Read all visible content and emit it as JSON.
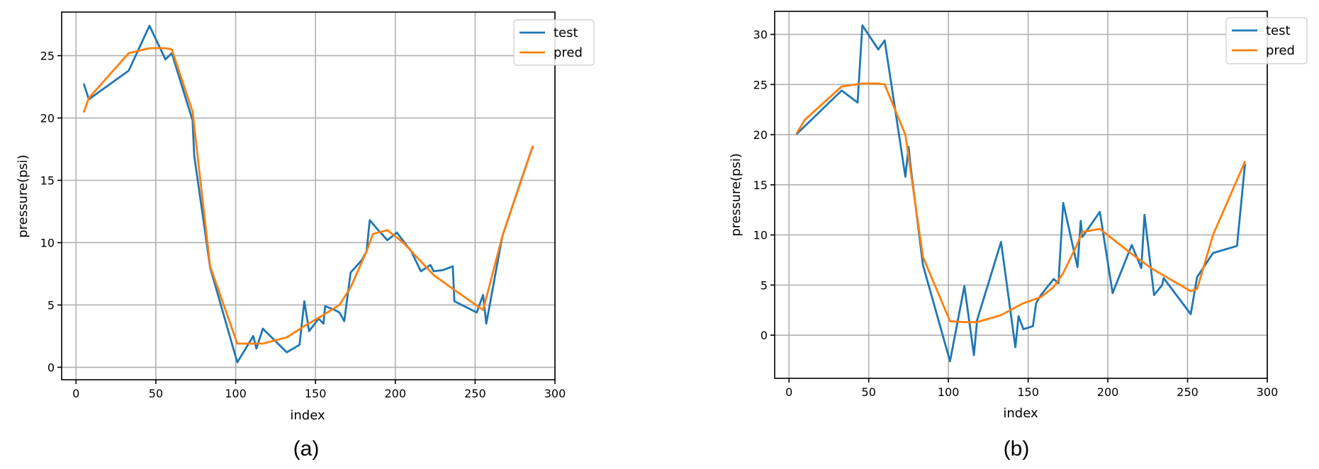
{
  "colors": {
    "test": "#1f77b4",
    "pred": "#ff7f0e"
  },
  "chart_data": [
    {
      "type": "line",
      "caption": "(a)",
      "xlabel": "index",
      "ylabel": "pressure(psi)",
      "xlim": [
        -9,
        300
      ],
      "ylim": [
        -1,
        28.5
      ],
      "xticks": [
        0,
        50,
        100,
        150,
        200,
        250,
        300
      ],
      "yticks": [
        0,
        5,
        10,
        15,
        20,
        25
      ],
      "grid": true,
      "legend": "top-right",
      "series": [
        {
          "name": "test",
          "color_key": "test",
          "points": [
            [
              5,
              22.7
            ],
            [
              8,
              21.5
            ],
            [
              33,
              23.8
            ],
            [
              46,
              27.4
            ],
            [
              56,
              24.7
            ],
            [
              60,
              25.2
            ],
            [
              73,
              19.8
            ],
            [
              74,
              17.0
            ],
            [
              84,
              8.0
            ],
            [
              101,
              0.4
            ],
            [
              111,
              2.5
            ],
            [
              113,
              1.5
            ],
            [
              117,
              3.1
            ],
            [
              132,
              1.2
            ],
            [
              140,
              1.8
            ],
            [
              143,
              5.3
            ],
            [
              146,
              2.9
            ],
            [
              152,
              3.9
            ],
            [
              155,
              3.5
            ],
            [
              156,
              4.9
            ],
            [
              162,
              4.6
            ],
            [
              165,
              4.4
            ],
            [
              168,
              3.7
            ],
            [
              172,
              7.6
            ],
            [
              179,
              8.6
            ],
            [
              182,
              9.3
            ],
            [
              184,
              11.8
            ],
            [
              190,
              10.9
            ],
            [
              195,
              10.2
            ],
            [
              201,
              10.8
            ],
            [
              210,
              9.3
            ],
            [
              216,
              7.7
            ],
            [
              222,
              8.2
            ],
            [
              224,
              7.7
            ],
            [
              230,
              7.8
            ],
            [
              236,
              8.1
            ],
            [
              237,
              5.3
            ],
            [
              251,
              4.4
            ],
            [
              255,
              5.8
            ],
            [
              257,
              3.5
            ],
            [
              267,
              10.5
            ],
            [
              278,
              14.7
            ],
            [
              286,
              17.7
            ]
          ]
        },
        {
          "name": "pred",
          "color_key": "pred",
          "points": [
            [
              5,
              20.5
            ],
            [
              8,
              21.6
            ],
            [
              33,
              25.2
            ],
            [
              46,
              25.6
            ],
            [
              56,
              25.6
            ],
            [
              60,
              25.5
            ],
            [
              73,
              20.5
            ],
            [
              84,
              8.1
            ],
            [
              101,
              1.9
            ],
            [
              110,
              1.9
            ],
            [
              117,
              1.9
            ],
            [
              132,
              2.4
            ],
            [
              143,
              3.3
            ],
            [
              155,
              4.2
            ],
            [
              165,
              5.0
            ],
            [
              172,
              6.4
            ],
            [
              182,
              9.3
            ],
            [
              186,
              10.7
            ],
            [
              195,
              11.0
            ],
            [
              205,
              10.0
            ],
            [
              216,
              8.5
            ],
            [
              224,
              7.4
            ],
            [
              237,
              6.2
            ],
            [
              255,
              4.6
            ],
            [
              267,
              10.5
            ],
            [
              286,
              17.7
            ]
          ]
        }
      ]
    },
    {
      "type": "line",
      "caption": "(b)",
      "xlabel": "index",
      "ylabel": "pressure(psi)",
      "xlim": [
        -9,
        300
      ],
      "ylim": [
        -4.3,
        32.3
      ],
      "xticks": [
        0,
        50,
        100,
        150,
        200,
        250,
        300
      ],
      "yticks": [
        0,
        5,
        10,
        15,
        20,
        25,
        30
      ],
      "grid": true,
      "legend": "top-right",
      "series": [
        {
          "name": "test",
          "color_key": "test",
          "points": [
            [
              5,
              20.1
            ],
            [
              33,
              24.4
            ],
            [
              43,
              23.2
            ],
            [
              46,
              30.9
            ],
            [
              56,
              28.5
            ],
            [
              60,
              29.4
            ],
            [
              73,
              15.8
            ],
            [
              75,
              18.8
            ],
            [
              76,
              17.2
            ],
            [
              84,
              7.0
            ],
            [
              101,
              -2.6
            ],
            [
              110,
              4.9
            ],
            [
              116,
              -2.0
            ],
            [
              118,
              1.5
            ],
            [
              133,
              9.3
            ],
            [
              142,
              -1.2
            ],
            [
              144,
              1.9
            ],
            [
              147,
              0.6
            ],
            [
              153,
              0.9
            ],
            [
              155,
              3.2
            ],
            [
              158,
              4.0
            ],
            [
              166,
              5.6
            ],
            [
              169,
              5.2
            ],
            [
              172,
              13.2
            ],
            [
              181,
              6.8
            ],
            [
              183,
              11.4
            ],
            [
              184,
              9.8
            ],
            [
              195,
              12.3
            ],
            [
              203,
              4.2
            ],
            [
              215,
              9.0
            ],
            [
              221,
              6.7
            ],
            [
              223,
              12.0
            ],
            [
              229,
              4.0
            ],
            [
              234,
              5.0
            ],
            [
              235,
              5.7
            ],
            [
              252,
              2.1
            ],
            [
              256,
              5.8
            ],
            [
              266,
              8.2
            ],
            [
              281,
              8.9
            ],
            [
              286,
              17.0
            ]
          ]
        },
        {
          "name": "pred",
          "color_key": "pred",
          "points": [
            [
              5,
              20.2
            ],
            [
              10,
              21.5
            ],
            [
              33,
              24.8
            ],
            [
              46,
              25.1
            ],
            [
              56,
              25.1
            ],
            [
              60,
              25.0
            ],
            [
              73,
              20.0
            ],
            [
              84,
              7.8
            ],
            [
              101,
              1.4
            ],
            [
              110,
              1.3
            ],
            [
              118,
              1.3
            ],
            [
              133,
              2.0
            ],
            [
              147,
              3.2
            ],
            [
              158,
              3.8
            ],
            [
              166,
              4.8
            ],
            [
              172,
              6.2
            ],
            [
              180,
              8.8
            ],
            [
              184,
              10.3
            ],
            [
              195,
              10.6
            ],
            [
              215,
              8.1
            ],
            [
              228,
              6.6
            ],
            [
              252,
              4.4
            ],
            [
              256,
              4.6
            ],
            [
              266,
              10.0
            ],
            [
              286,
              17.3
            ]
          ]
        }
      ]
    }
  ]
}
